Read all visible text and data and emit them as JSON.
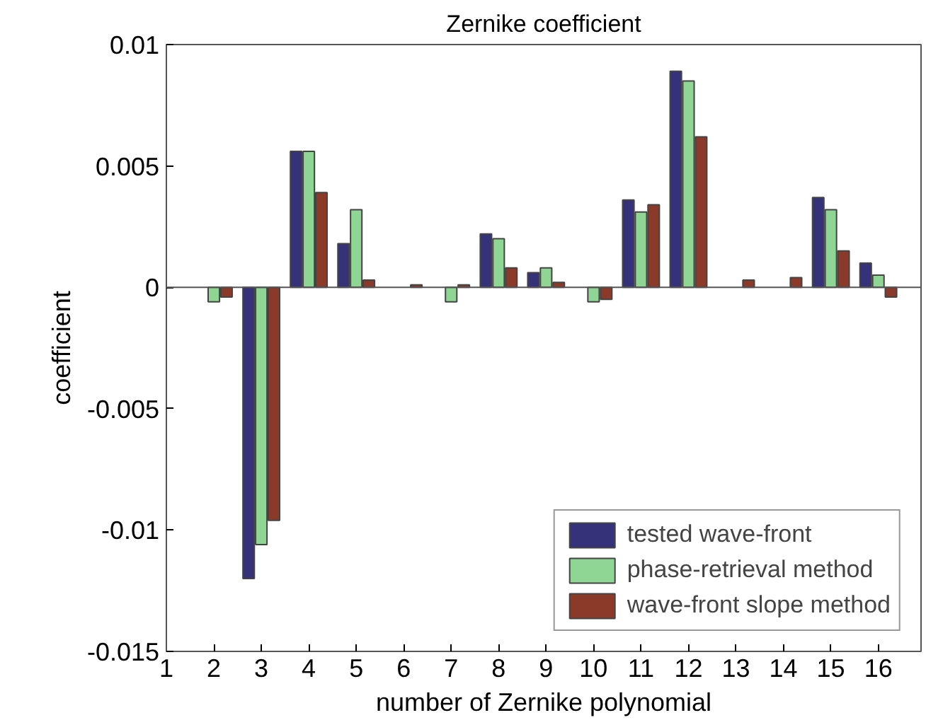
{
  "chart_data": {
    "type": "bar",
    "title": "Zernike coefficient",
    "xlabel": "number of Zernike polynomial",
    "ylabel": "coefficient",
    "x": [
      2,
      3,
      4,
      5,
      6,
      7,
      8,
      9,
      10,
      11,
      12,
      13,
      14,
      15,
      16
    ],
    "series": [
      {
        "name": "tested wave-front",
        "color": "#35327a",
        "values": [
          null,
          -0.012,
          0.0056,
          0.0018,
          null,
          null,
          0.0022,
          0.0006,
          null,
          0.0036,
          0.0089,
          null,
          null,
          0.0037,
          0.001
        ]
      },
      {
        "name": "phase-retrieval method",
        "color": "#8fd694",
        "values": [
          -0.0006,
          -0.0106,
          0.0056,
          0.0032,
          null,
          -0.0006,
          0.002,
          0.0008,
          -0.0006,
          0.0031,
          0.0085,
          null,
          null,
          0.0032,
          0.0005
        ]
      },
      {
        "name": "wave-front slope method",
        "color": "#8b3a2a",
        "values": [
          -0.0004,
          -0.0096,
          0.0039,
          0.0003,
          0.0001,
          0.0001,
          0.0008,
          0.0002,
          -0.0005,
          0.0034,
          0.0062,
          0.0003,
          0.0004,
          0.0015,
          -0.0004
        ]
      }
    ],
    "xlim": [
      1,
      16.9
    ],
    "ylim": [
      -0.015,
      0.01
    ],
    "xticks": [
      1,
      2,
      3,
      4,
      5,
      6,
      7,
      8,
      9,
      10,
      11,
      12,
      13,
      14,
      15,
      16
    ],
    "yticks": [
      -0.015,
      -0.01,
      -0.005,
      0,
      0.005,
      0.01
    ],
    "ref_lines": [
      {
        "axis": "y",
        "value": 0
      }
    ],
    "grid": false,
    "legend": "bottom right"
  }
}
